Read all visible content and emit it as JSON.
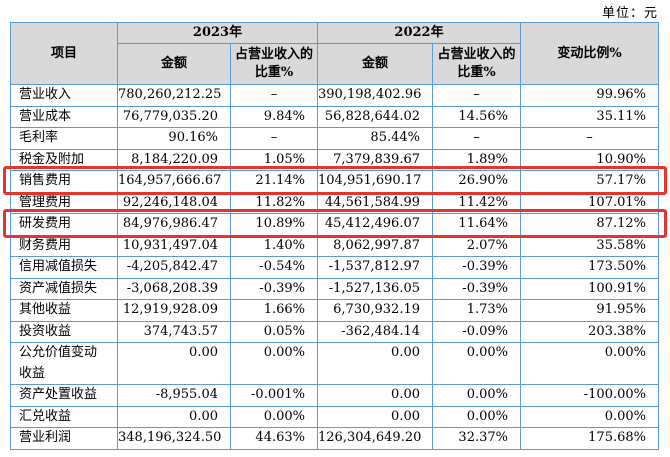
{
  "unit_label": "单位：元",
  "colors": {
    "border_blue": "#5b9bd5",
    "header_gray": "#d9d9d9",
    "highlight_red": "#e5342b"
  },
  "table": {
    "header": {
      "item": "项目",
      "year_2023": "2023年",
      "year_2022": "2022年",
      "amount_2023": "金额",
      "pct_2023": "占营业收入的比重%",
      "amount_2022": "金额",
      "pct_2022": "占营业收入的比重%",
      "change_ratio": "变动比例%"
    },
    "rows": [
      {
        "item": "营业收入",
        "amount_2023": "780,260,212.25",
        "pct_2023": "–",
        "amount_2022": "390,198,402.96",
        "pct_2022": "–",
        "change": "99.96%",
        "highlighted": false
      },
      {
        "item": "营业成本",
        "amount_2023": "76,779,035.20",
        "pct_2023": "9.84%",
        "amount_2022": "56,828,644.02",
        "pct_2022": "14.56%",
        "change": "35.11%",
        "highlighted": false
      },
      {
        "item": "毛利率",
        "amount_2023": "90.16%",
        "pct_2023": "–",
        "amount_2022": "85.44%",
        "pct_2022": "–",
        "change": "–",
        "highlighted": false
      },
      {
        "item": "税金及附加",
        "amount_2023": "8,184,220.09",
        "pct_2023": "1.05%",
        "amount_2022": "7,379,839.67",
        "pct_2022": "1.89%",
        "change": "10.90%",
        "highlighted": false
      },
      {
        "item": "销售费用",
        "amount_2023": "164,957,666.67",
        "pct_2023": "21.14%",
        "amount_2022": "104,951,690.17",
        "pct_2022": "26.90%",
        "change": "57.17%",
        "highlighted": true
      },
      {
        "item": "管理费用",
        "amount_2023": "92,246,148.04",
        "pct_2023": "11.82%",
        "amount_2022": "44,561,584.99",
        "pct_2022": "11.42%",
        "change": "107.01%",
        "highlighted": false
      },
      {
        "item": "研发费用",
        "amount_2023": "84,976,986.47",
        "pct_2023": "10.89%",
        "amount_2022": "45,412,496.07",
        "pct_2022": "11.64%",
        "change": "87.12%",
        "highlighted": true
      },
      {
        "item": "财务费用",
        "amount_2023": "10,931,497.04",
        "pct_2023": "1.40%",
        "amount_2022": "8,062,997.87",
        "pct_2022": "2.07%",
        "change": "35.58%",
        "highlighted": false
      },
      {
        "item": "信用减值损失",
        "amount_2023": "-4,205,842.47",
        "pct_2023": "-0.54%",
        "amount_2022": "-1,537,812.97",
        "pct_2022": "-0.39%",
        "change": "173.50%",
        "highlighted": false
      },
      {
        "item": "资产减值损失",
        "amount_2023": "-3,068,208.39",
        "pct_2023": "-0.39%",
        "amount_2022": "-1,527,136.05",
        "pct_2022": "-0.39%",
        "change": "100.91%",
        "highlighted": false
      },
      {
        "item": "其他收益",
        "amount_2023": "12,919,928.09",
        "pct_2023": "1.66%",
        "amount_2022": "6,730,932.19",
        "pct_2022": "1.73%",
        "change": "91.95%",
        "highlighted": false
      },
      {
        "item": "投资收益",
        "amount_2023": "374,743.57",
        "pct_2023": "0.05%",
        "amount_2022": "-362,484.14",
        "pct_2022": "-0.09%",
        "change": "203.38%",
        "highlighted": false
      },
      {
        "item": "公允价值变动收益",
        "amount_2023": "0.00",
        "pct_2023": "0.00%",
        "amount_2022": "0.00",
        "pct_2022": "0.00%",
        "change": "0.00%",
        "highlighted": false
      },
      {
        "item": "资产处置收益",
        "amount_2023": "-8,955.04",
        "pct_2023": "-0.001%",
        "amount_2022": "0.00",
        "pct_2022": "0.00%",
        "change": "-100.00%",
        "highlighted": false
      },
      {
        "item": "汇兑收益",
        "amount_2023": "0.00",
        "pct_2023": "0.00%",
        "amount_2022": "0.00",
        "pct_2022": "0.00%",
        "change": "0.00%",
        "highlighted": false
      },
      {
        "item": "营业利润",
        "amount_2023": "348,196,324.50",
        "pct_2023": "44.63%",
        "amount_2022": "126,304,649.20",
        "pct_2022": "32.37%",
        "change": "175.68%",
        "highlighted": false
      }
    ]
  }
}
